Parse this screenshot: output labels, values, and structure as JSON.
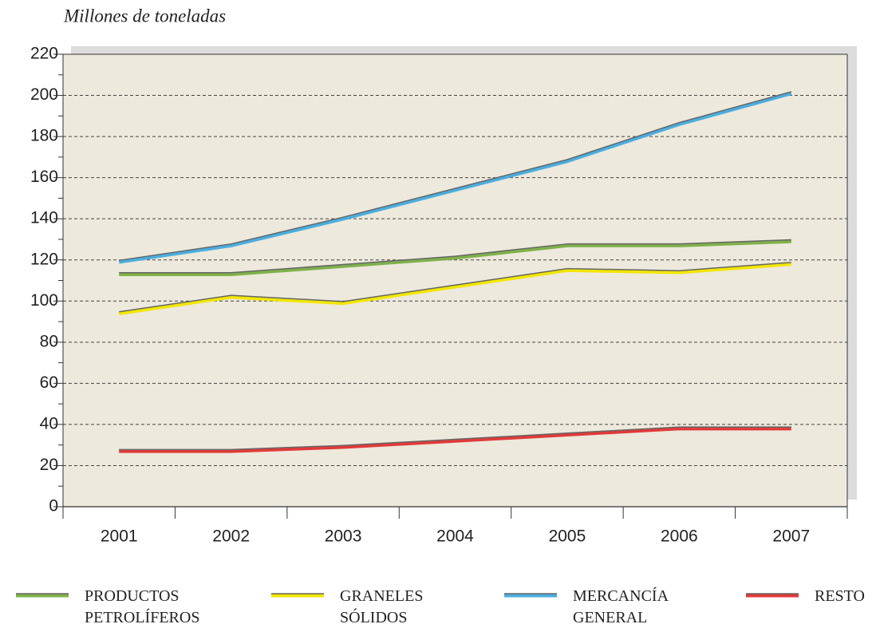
{
  "chart_data": {
    "type": "line",
    "y_label": "Millones de toneladas",
    "categories": [
      "2001",
      "2002",
      "2003",
      "2004",
      "2005",
      "2006",
      "2007"
    ],
    "series": [
      {
        "name": "PRODUCTOS PETROLÍFEROS",
        "color": "#7fb14a",
        "values": [
          113,
          113,
          117,
          121,
          127,
          127,
          129
        ]
      },
      {
        "name": "GRANELES SÓLIDOS",
        "color": "#f2e600",
        "values": [
          94,
          102,
          99,
          107,
          115,
          114,
          118
        ]
      },
      {
        "name": "MERCANCÍA GENERAL",
        "color": "#4aaee0",
        "values": [
          119,
          127,
          140,
          154,
          168,
          186,
          201
        ]
      },
      {
        "name": "RESTO",
        "color": "#e03a3a",
        "values": [
          27,
          27,
          29,
          32,
          35,
          38,
          38
        ]
      }
    ],
    "ylim": [
      0,
      220
    ],
    "yticks": [
      0,
      20,
      40,
      60,
      80,
      100,
      120,
      140,
      160,
      180,
      200,
      220
    ],
    "grid": true
  }
}
